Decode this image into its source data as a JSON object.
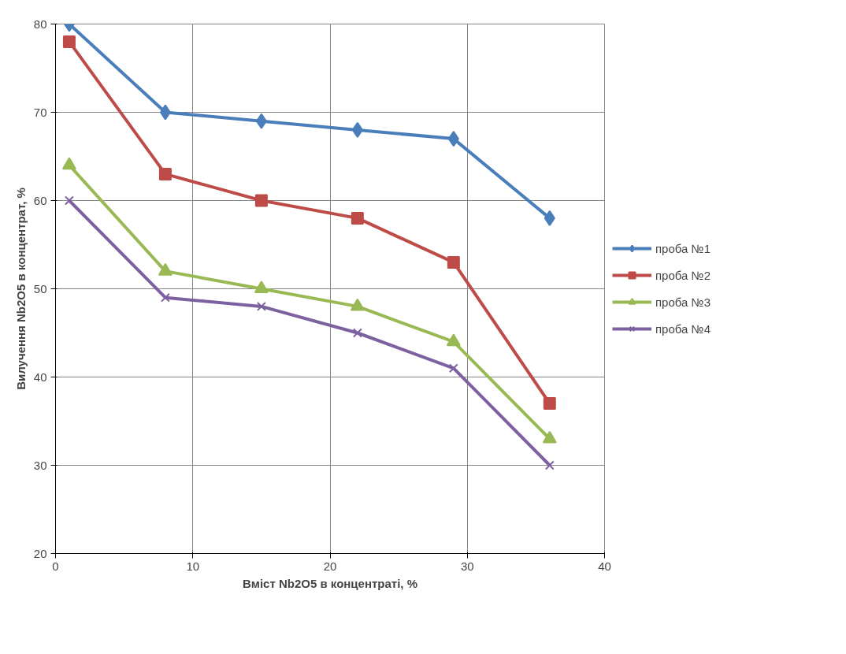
{
  "chart_data": {
    "type": "line",
    "xlabel": "Вміст Nb2O5 в концентраті, %",
    "ylabel": "Вилучення Nb2O5 в концентрат, %",
    "x": [
      1,
      8,
      15,
      22,
      29,
      36
    ],
    "xlim": [
      0,
      40
    ],
    "xticks": [
      0,
      10,
      20,
      30,
      40
    ],
    "ylim": [
      20,
      80
    ],
    "yticks": [
      20,
      30,
      40,
      50,
      60,
      70,
      80
    ],
    "grid": true,
    "legend": "right",
    "series": [
      {
        "name": "проба №1",
        "color": "#4a7ebb",
        "marker": "diamond",
        "values": [
          80,
          70,
          69,
          68,
          67,
          58
        ]
      },
      {
        "name": "проба №2",
        "color": "#be4b48",
        "marker": "square",
        "values": [
          78,
          63,
          60,
          58,
          53,
          37
        ]
      },
      {
        "name": "проба №3",
        "color": "#98b954",
        "marker": "triangle",
        "values": [
          64,
          52,
          50,
          48,
          44,
          33
        ]
      },
      {
        "name": "проба №4",
        "color": "#7d60a0",
        "marker": "cross",
        "values": [
          60,
          49,
          48,
          45,
          41,
          30
        ]
      }
    ]
  }
}
